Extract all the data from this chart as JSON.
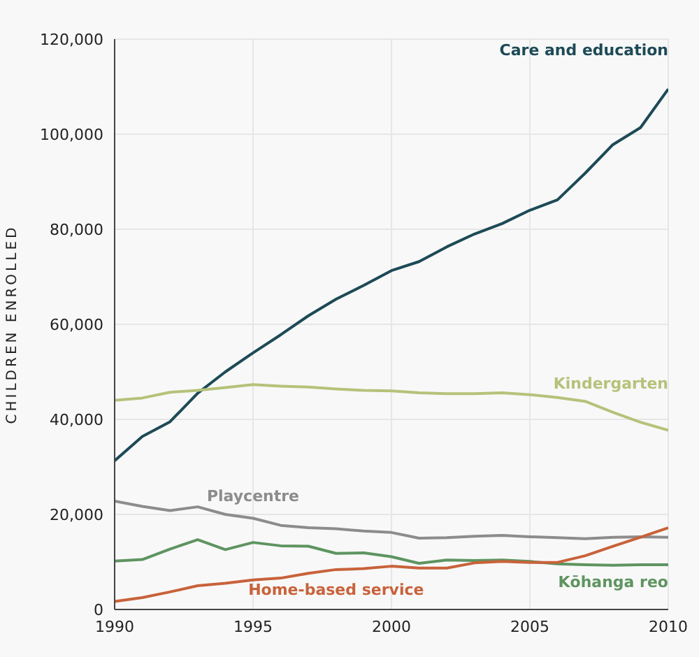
{
  "chart_data": {
    "type": "line",
    "ylabel": "CHILDREN ENROLLED",
    "x": [
      1990,
      1991,
      1992,
      1993,
      1994,
      1995,
      1996,
      1997,
      1998,
      1999,
      2000,
      2001,
      2002,
      2003,
      2004,
      2005,
      2006,
      2007,
      2008,
      2009,
      2010
    ],
    "xlim": [
      1990,
      2010
    ],
    "xticks": [
      1990,
      1995,
      2000,
      2005,
      2010
    ],
    "ylim": [
      0,
      120000
    ],
    "yticks": [
      {
        "value": 0,
        "label": "0"
      },
      {
        "value": 20000,
        "label": "20,000"
      },
      {
        "value": 40000,
        "label": "40,000"
      },
      {
        "value": 60000,
        "label": "60,000"
      },
      {
        "value": 80000,
        "label": "80,000"
      },
      {
        "value": 100000,
        "label": "100,000"
      },
      {
        "value": 120000,
        "label": "120,000"
      }
    ],
    "grid": true,
    "marker": "none",
    "line_style": "solid",
    "series": [
      {
        "name": "Care and education",
        "color": "#1d4a56",
        "values": [
          31300,
          36400,
          39500,
          45500,
          50000,
          54000,
          57800,
          61800,
          65300,
          68200,
          71300,
          73200,
          76300,
          79000,
          81200,
          84000,
          86200,
          91800,
          97800,
          101400,
          109500
        ]
      },
      {
        "name": "Kindergarten",
        "color": "#b5c27a",
        "values": [
          44000,
          44500,
          45700,
          46100,
          46700,
          47300,
          47000,
          46800,
          46400,
          46100,
          46000,
          45600,
          45400,
          45400,
          45600,
          45200,
          44600,
          43800,
          41500,
          39400,
          37700
        ]
      },
      {
        "name": "Playcentre",
        "color": "#8c8c8c",
        "values": [
          22800,
          21700,
          20800,
          21600,
          20000,
          19200,
          17700,
          17200,
          17000,
          16500,
          16200,
          15000,
          15100,
          15400,
          15600,
          15300,
          15100,
          14900,
          15200,
          15300,
          15200
        ]
      },
      {
        "name": "Kōhanga reo",
        "color": "#5e9460",
        "values": [
          10200,
          10500,
          12700,
          14700,
          12600,
          14100,
          13400,
          13300,
          11800,
          11900,
          11100,
          9700,
          10400,
          10300,
          10400,
          10100,
          9600,
          9400,
          9300,
          9400,
          9400
        ]
      },
      {
        "name": "Home-based service",
        "color": "#c8623a",
        "values": [
          1700,
          2500,
          3700,
          5000,
          5500,
          6200,
          6600,
          7600,
          8400,
          8600,
          9100,
          8700,
          8700,
          9800,
          10100,
          9900,
          9900,
          11300,
          13300,
          15200,
          17200
        ]
      }
    ]
  }
}
